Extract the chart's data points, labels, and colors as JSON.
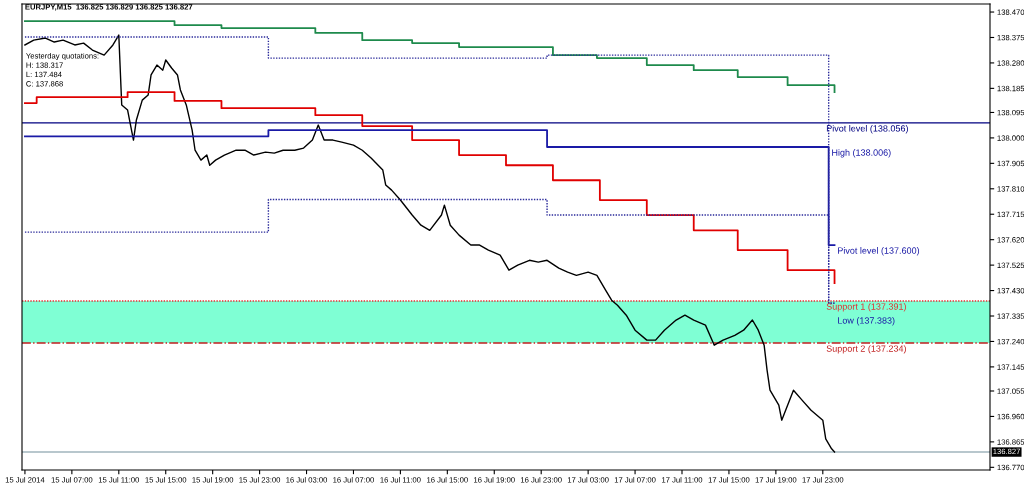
{
  "chart_data": {
    "type": "line",
    "title": "EURJPY,M15  136.825 136.829 136.825 136.827",
    "xlim": [
      "2014-07-15T02:45",
      "2014-07-18T13:15"
    ],
    "ylim": [
      136.76,
      138.5
    ],
    "xticks": [
      {
        "value": "2014-07-15T03:00",
        "label": "15 Jul 2014"
      },
      {
        "value": "2014-07-15T07:00",
        "label": "15 Jul 07:00"
      },
      {
        "value": "2014-07-15T11:00",
        "label": "15 Jul 11:00"
      },
      {
        "value": "2014-07-15T15:00",
        "label": "15 Jul 15:00"
      },
      {
        "value": "2014-07-15T19:00",
        "label": "15 Jul 19:00"
      },
      {
        "value": "2014-07-15T23:00",
        "label": "15 Jul 23:00"
      },
      {
        "value": "2014-07-16T03:00",
        "label": "16 Jul 03:00"
      },
      {
        "value": "2014-07-16T07:00",
        "label": "16 Jul 07:00"
      },
      {
        "value": "2014-07-16T11:00",
        "label": "16 Jul 11:00"
      },
      {
        "value": "2014-07-16T15:00",
        "label": "16 Jul 15:00"
      },
      {
        "value": "2014-07-16T19:00",
        "label": "16 Jul 19:00"
      },
      {
        "value": "2014-07-16T23:00",
        "label": "16 Jul 23:00"
      },
      {
        "value": "2014-07-17T03:00",
        "label": "17 Jul 03:00"
      },
      {
        "value": "2014-07-17T07:00",
        "label": "17 Jul 07:00"
      },
      {
        "value": "2014-07-17T11:00",
        "label": "17 Jul 11:00"
      },
      {
        "value": "2014-07-17T15:00",
        "label": "17 Jul 15:00"
      },
      {
        "value": "2014-07-17T19:00",
        "label": "17 Jul 19:00"
      },
      {
        "value": "2014-07-17T23:00",
        "label": "17 Jul 23:00"
      }
    ],
    "yticks": [
      {
        "value": 138.47,
        "label": "138.470"
      },
      {
        "value": 138.375,
        "label": "138.375"
      },
      {
        "value": 138.28,
        "label": "138.280"
      },
      {
        "value": 138.185,
        "label": "138.185"
      },
      {
        "value": 138.095,
        "label": "138.095"
      },
      {
        "value": 138.0,
        "label": "138.000"
      },
      {
        "value": 137.905,
        "label": "137.905"
      },
      {
        "value": 137.81,
        "label": "137.810"
      },
      {
        "value": 137.715,
        "label": "137.715"
      },
      {
        "value": 137.62,
        "label": "137.620"
      },
      {
        "value": 137.525,
        "label": "137.525"
      },
      {
        "value": 137.43,
        "label": "137.430"
      },
      {
        "value": 137.335,
        "label": "137.335"
      },
      {
        "value": 137.24,
        "label": "137.240"
      },
      {
        "value": 137.145,
        "label": "137.145"
      },
      {
        "value": 137.055,
        "label": "137.055"
      },
      {
        "value": 136.96,
        "label": "136.960"
      },
      {
        "value": 136.865,
        "label": "136.865"
      },
      {
        "value": 136.77,
        "label": "136.770"
      }
    ],
    "grid": false,
    "legend": false,
    "series": [
      {
        "color": "#000000",
        "line_style": "solid",
        "x": [
          "2014-07-15T03:00",
          "2014-07-15T03:45",
          "2014-07-15T04:45",
          "2014-07-15T05:30",
          "2014-07-15T06:15",
          "2014-07-15T07:15",
          "2014-07-15T08:00",
          "2014-07-15T08:45",
          "2014-07-15T09:45",
          "2014-07-15T10:30",
          "2014-07-15T11:00",
          "2014-07-15T11:15",
          "2014-07-15T11:45",
          "2014-07-15T12:15",
          "2014-07-15T12:30",
          "2014-07-15T13:00",
          "2014-07-15T13:30",
          "2014-07-15T13:45",
          "2014-07-15T14:15",
          "2014-07-15T14:45",
          "2014-07-15T15:00",
          "2014-07-15T15:30",
          "2014-07-15T16:00",
          "2014-07-15T16:15",
          "2014-07-15T16:45",
          "2014-07-15T17:15",
          "2014-07-15T17:30",
          "2014-07-15T18:00",
          "2014-07-15T18:30",
          "2014-07-15T18:45",
          "2014-07-15T19:15",
          "2014-07-15T20:00",
          "2014-07-15T21:00",
          "2014-07-15T21:45",
          "2014-07-15T22:30",
          "2014-07-15T23:30",
          "2014-07-16T00:15",
          "2014-07-16T01:00",
          "2014-07-16T02:00",
          "2014-07-16T02:45",
          "2014-07-16T03:30",
          "2014-07-16T04:00",
          "2014-07-16T04:30",
          "2014-07-16T05:15",
          "2014-07-16T06:00",
          "2014-07-16T07:00",
          "2014-07-16T07:45",
          "2014-07-16T08:30",
          "2014-07-16T09:30",
          "2014-07-16T09:45",
          "2014-07-16T10:15",
          "2014-07-16T11:00",
          "2014-07-16T12:00",
          "2014-07-16T12:45",
          "2014-07-16T13:30",
          "2014-07-16T14:30",
          "2014-07-16T14:45",
          "2014-07-16T15:15",
          "2014-07-16T16:00",
          "2014-07-16T17:00",
          "2014-07-16T17:45",
          "2014-07-16T18:30",
          "2014-07-16T19:30",
          "2014-07-16T20:15",
          "2014-07-16T21:00",
          "2014-07-16T22:00",
          "2014-07-16T22:45",
          "2014-07-16T23:30",
          "2014-07-17T00:30",
          "2014-07-17T01:15",
          "2014-07-17T02:00",
          "2014-07-17T03:00",
          "2014-07-17T03:45",
          "2014-07-17T04:30",
          "2014-07-17T05:00",
          "2014-07-17T05:30",
          "2014-07-17T06:15",
          "2014-07-17T07:00",
          "2014-07-17T08:00",
          "2014-07-17T08:45",
          "2014-07-17T09:30",
          "2014-07-17T10:30",
          "2014-07-17T11:15",
          "2014-07-17T12:00",
          "2014-07-17T13:00",
          "2014-07-17T13:45",
          "2014-07-17T14:30",
          "2014-07-17T15:30",
          "2014-07-17T16:15",
          "2014-07-17T17:00",
          "2014-07-17T17:30",
          "2014-07-17T18:00",
          "2014-07-17T18:15",
          "2014-07-17T18:30",
          "2014-07-17T19:15",
          "2014-07-17T19:30",
          "2014-07-17T20:30",
          "2014-07-17T21:15",
          "2014-07-17T22:00",
          "2014-07-17T23:00",
          "2014-07-17T23:15",
          "2014-07-17T23:45",
          "2014-07-18T00:00"
        ],
        "values": [
          138.347,
          138.365,
          138.373,
          138.358,
          138.365,
          138.347,
          138.354,
          138.328,
          138.309,
          138.347,
          138.384,
          138.123,
          138.104,
          137.992,
          138.067,
          138.141,
          138.16,
          138.235,
          138.272,
          138.253,
          138.291,
          138.261,
          138.235,
          138.179,
          138.123,
          138.029,
          137.954,
          137.917,
          137.936,
          137.898,
          137.917,
          137.936,
          137.954,
          137.954,
          137.936,
          137.947,
          137.943,
          137.954,
          137.954,
          137.962,
          137.992,
          138.048,
          137.992,
          137.992,
          137.984,
          137.973,
          137.954,
          137.925,
          137.88,
          137.824,
          137.805,
          137.768,
          137.712,
          137.674,
          137.655,
          137.712,
          137.749,
          137.674,
          137.637,
          137.6,
          137.6,
          137.581,
          137.562,
          137.506,
          137.525,
          137.543,
          137.536,
          137.543,
          137.514,
          137.499,
          137.487,
          137.499,
          137.487,
          137.431,
          137.394,
          137.375,
          137.338,
          137.282,
          137.245,
          137.245,
          137.282,
          137.32,
          137.338,
          137.32,
          137.301,
          137.226,
          137.245,
          137.263,
          137.282,
          137.32,
          137.282,
          137.226,
          137.133,
          137.058,
          137.002,
          136.946,
          137.058,
          137.02,
          136.983,
          136.946,
          136.876,
          136.839,
          136.827
        ]
      },
      {
        "type": "step",
        "color": "#1e8a4c",
        "line_style": "solid",
        "x": [
          "2014-07-15T03:00",
          "2014-07-15T15:45",
          "2014-07-15T19:45",
          "2014-07-16T03:45",
          "2014-07-16T07:45",
          "2014-07-16T12:00",
          "2014-07-16T16:00",
          "2014-07-17T00:00",
          "2014-07-17T03:45",
          "2014-07-17T08:00",
          "2014-07-17T12:00",
          "2014-07-17T15:45",
          "2014-07-17T20:00",
          "2014-07-18T00:00"
        ],
        "values": [
          138.436,
          138.421,
          138.41,
          138.392,
          138.365,
          138.354,
          138.339,
          138.309,
          138.298,
          138.272,
          138.253,
          138.227,
          138.197,
          138.171
        ]
      },
      {
        "type": "step",
        "color": "#e00000",
        "line_style": "solid",
        "x": [
          "2014-07-15T03:00",
          "2014-07-15T04:00",
          "2014-07-15T11:45",
          "2014-07-15T15:45",
          "2014-07-15T19:45",
          "2014-07-16T03:45",
          "2014-07-16T07:45",
          "2014-07-16T12:00",
          "2014-07-16T16:00",
          "2014-07-16T20:00",
          "2014-07-17T00:00",
          "2014-07-17T04:00",
          "2014-07-17T08:00",
          "2014-07-17T12:00",
          "2014-07-17T15:45",
          "2014-07-17T20:00",
          "2014-07-18T00:00"
        ],
        "values": [
          138.13,
          138.152,
          138.171,
          138.138,
          138.111,
          138.085,
          138.044,
          137.992,
          137.936,
          137.898,
          137.842,
          137.768,
          137.712,
          137.655,
          137.581,
          137.506,
          137.458
        ]
      },
      {
        "type": "step",
        "color": "#1a1aa6",
        "line_style": "solid",
        "x": [
          "2014-07-15T03:00",
          "2014-07-15T23:45",
          "2014-07-16T23:30",
          "2014-07-17T23:30",
          "2014-07-18T00:00"
        ],
        "values": [
          138.006,
          138.029,
          137.966,
          137.6,
          137.6
        ]
      },
      {
        "type": "step",
        "color": "#2a2a9a",
        "line_style": "dotted",
        "x": [
          "2014-07-15T03:00",
          "2014-07-15T23:45",
          "2014-07-16T23:30",
          "2014-07-17T23:30",
          "2014-07-18T00:00"
        ],
        "values": [
          138.377,
          138.298,
          138.309,
          137.383,
          137.383
        ]
      },
      {
        "type": "step",
        "color": "#2a2a9a",
        "line_style": "dotted",
        "x": [
          "2014-07-15T03:00",
          "2014-07-15T23:45",
          "2014-07-16T23:30",
          "2014-07-17T23:30",
          "2014-07-18T00:00"
        ],
        "values": [
          137.648,
          137.77,
          137.712,
          137.383,
          137.383
        ]
      }
    ],
    "ref_lines": [
      {
        "axis": "y",
        "value": 138.056,
        "label": "Pivot level (138.056)",
        "color": "#000080",
        "line_style": "solid"
      },
      {
        "axis": "y",
        "value": 137.391,
        "label": "Support 1 (137.391)",
        "color": "#e03030",
        "line_style": "dotted"
      },
      {
        "axis": "y",
        "value": 137.234,
        "label": "Support 2 (137.234)",
        "color": "#c02020",
        "line_style": "dashdot"
      },
      {
        "axis": "y",
        "value": 136.827,
        "label": "136.827",
        "color": "#a0b4bc",
        "line_style": "solid"
      }
    ],
    "bands": [
      {
        "axis": "y",
        "from": 137.234,
        "to": 137.391,
        "color": "#7fffd4"
      }
    ],
    "annotations": [
      "Yesterday quotations:",
      "H: 138.317",
      "L: 137.484",
      "C: 137.868",
      {
        "text": "High (138.006)",
        "x": "2014-07-17T23:30",
        "y": 137.966
      },
      {
        "text": "Pivot level (137.600)",
        "x": "2014-07-18T00:00",
        "y": 137.6
      },
      {
        "text": "Low (137.383)",
        "x": "2014-07-18T00:00",
        "y": 137.383
      }
    ]
  }
}
